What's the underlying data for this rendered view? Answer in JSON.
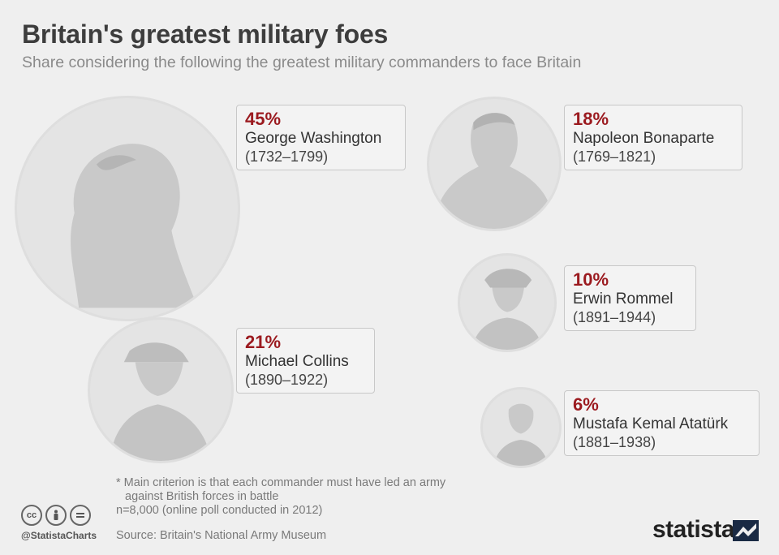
{
  "title": "Britain's greatest military foes",
  "subtitle": "Share considering the following the greatest military commanders to face Britain",
  "chart_data": {
    "type": "bubble",
    "title": "Britain's greatest military foes",
    "subtitle": "Share considering the following the greatest military commanders to face Britain",
    "unit": "%",
    "categories": [
      "George Washington",
      "Napoleon Bonaparte",
      "Michael Collins",
      "Erwin Rommel",
      "Mustafa Kemal Atatürk"
    ],
    "values": [
      45,
      18,
      21,
      10,
      6
    ],
    "items": [
      {
        "pct": "45%",
        "name": "George Washington",
        "years": "(1732–1799)"
      },
      {
        "pct": "18%",
        "name": "Napoleon Bonaparte",
        "years": "(1769–1821)"
      },
      {
        "pct": "21%",
        "name": "Michael Collins",
        "years": "(1890–1922)"
      },
      {
        "pct": "10%",
        "name": "Erwin Rommel",
        "years": "(1891–1944)"
      },
      {
        "pct": "6%",
        "name": "Mustafa Kemal Atatürk",
        "years": "(1881–1938)"
      }
    ]
  },
  "notes": {
    "line1": "* Main criterion is that each commander must have led an army",
    "line2": "against British forces in battle",
    "line3": "n=8,000 (online poll conducted in 2012)"
  },
  "source": "Source: Britain's National Army Museum",
  "footer": {
    "handle": "@StatistaCharts",
    "brand": "statista",
    "cc_icons": [
      "cc-icon",
      "by-icon",
      "nd-icon"
    ]
  },
  "colors": {
    "background": "#efefef",
    "accent": "#9b1a1f",
    "portrait": "#e4e4e4",
    "silhouette": "#c9c9c9"
  }
}
